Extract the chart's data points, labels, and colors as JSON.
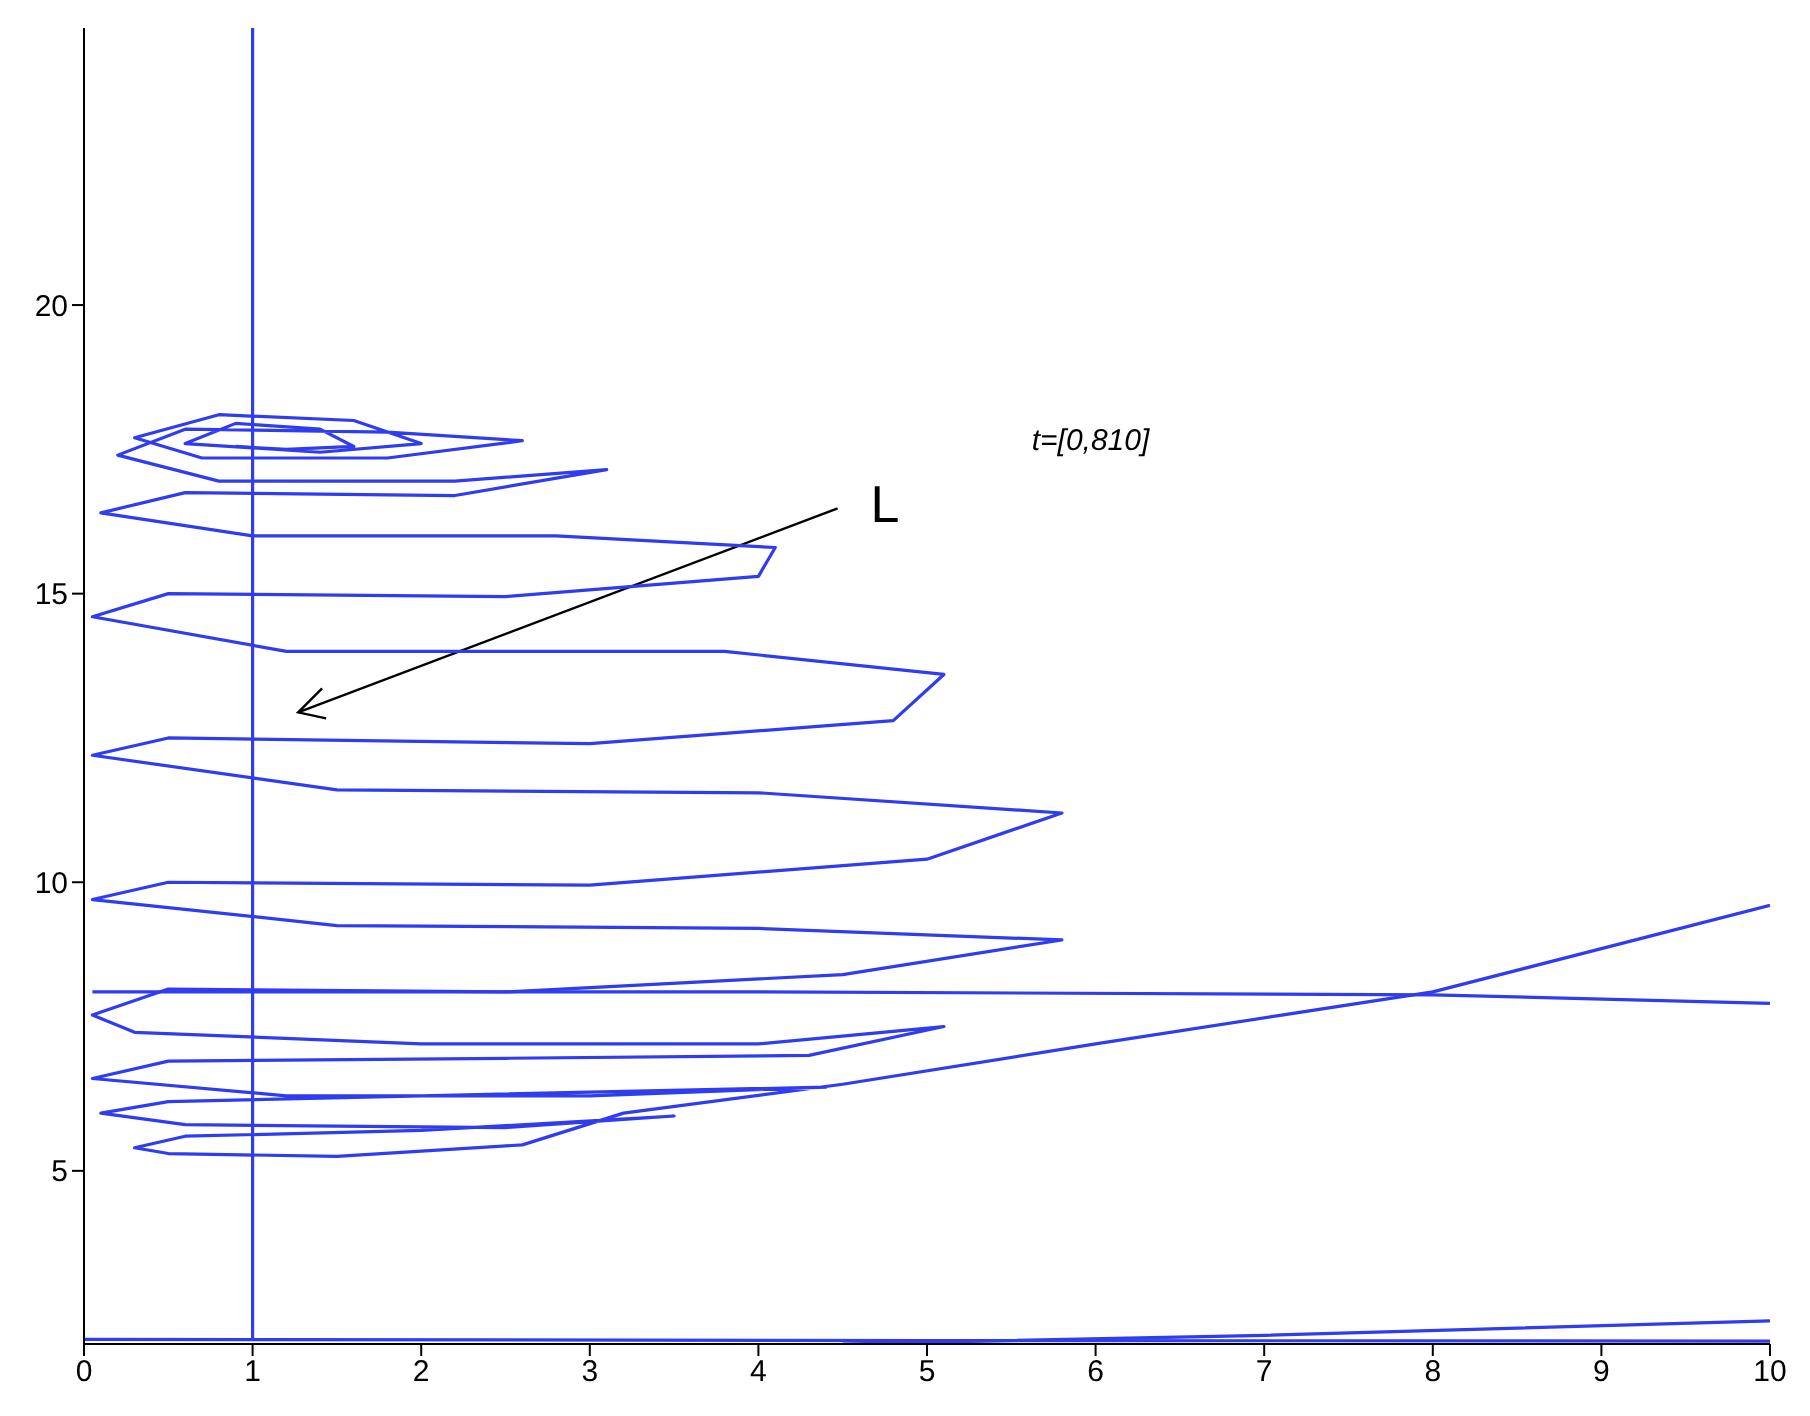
{
  "chart_data": {
    "type": "line",
    "xlim": [
      0,
      10
    ],
    "xticks": [
      0,
      1,
      2,
      3,
      4,
      5,
      6,
      7,
      8,
      9,
      10
    ],
    "ylim": [
      2,
      24.8
    ],
    "yticks": [
      5,
      10,
      15,
      20
    ],
    "marker": "none",
    "line_style": "solid",
    "annotations": [
      "t=[0,810]",
      "L"
    ],
    "series": [
      {
        "color": "#2f3cf0",
        "x": [
          10,
          8,
          6,
          4.5,
          3.2,
          2.6,
          1.5,
          0.5,
          0.3,
          0.6,
          2,
          3.5,
          2.5,
          0.6,
          0.1,
          0.5,
          2,
          4.4,
          3,
          1.2,
          0.05,
          0.5,
          2.5,
          4.3,
          5.1,
          4,
          2,
          0.3,
          0.05,
          0.5,
          2.5,
          4.5,
          5.8,
          4,
          1.5,
          0.05,
          0.5,
          3,
          5,
          5.8,
          4,
          1.5,
          0.05,
          0.5,
          3,
          4.8,
          5.1,
          3.8,
          1.2,
          0.05,
          0.5,
          2.5,
          4,
          4.1,
          2.8,
          1,
          0.1,
          0.6,
          2.2,
          3.1,
          2.2,
          0.8,
          0.2,
          0.6,
          1.8,
          2.6,
          1.8,
          0.7,
          0.3,
          0.8,
          1.6,
          2,
          1.4,
          0.6,
          0.9,
          1.4,
          1.6,
          1.2,
          0.9
        ],
        "values": [
          9.6,
          8.1,
          7.2,
          6.5,
          6.0,
          5.45,
          5.25,
          5.3,
          5.4,
          5.6,
          5.7,
          5.95,
          5.75,
          5.8,
          6.0,
          6.2,
          6.3,
          6.45,
          6.3,
          6.3,
          6.6,
          6.9,
          6.95,
          7.0,
          7.5,
          7.2,
          7.2,
          7.4,
          7.7,
          8.15,
          8.1,
          8.4,
          9.0,
          9.2,
          9.25,
          9.7,
          10.0,
          9.95,
          10.4,
          11.2,
          11.55,
          11.6,
          12.2,
          12.5,
          12.4,
          12.8,
          13.6,
          14.0,
          14.0,
          14.6,
          15.0,
          14.95,
          15.3,
          15.8,
          16.0,
          16.0,
          16.4,
          16.75,
          16.7,
          17.15,
          16.95,
          16.95,
          17.4,
          17.85,
          17.8,
          17.65,
          17.35,
          17.35,
          17.7,
          18.1,
          18.0,
          17.6,
          17.45,
          17.6,
          17.95,
          17.85,
          17.55,
          17.5,
          17.55
        ]
      },
      {
        "color": "#2f3cf0",
        "x": [
          0.05,
          4,
          8,
          10
        ],
        "values": [
          8.1,
          8.1,
          8.05,
          7.9
        ]
      },
      {
        "color": "#2f3cf0",
        "x": [
          1,
          1
        ],
        "values": [
          2.1,
          24.8
        ]
      },
      {
        "color": "#2f3cf0",
        "x": [
          0,
          5,
          10
        ],
        "values": [
          2.08,
          2.06,
          2.05
        ]
      },
      {
        "color": "#2f3cf0",
        "x": [
          4.5,
          7,
          10
        ],
        "values": [
          2.0,
          2.15,
          2.4
        ]
      }
    ]
  }
}
